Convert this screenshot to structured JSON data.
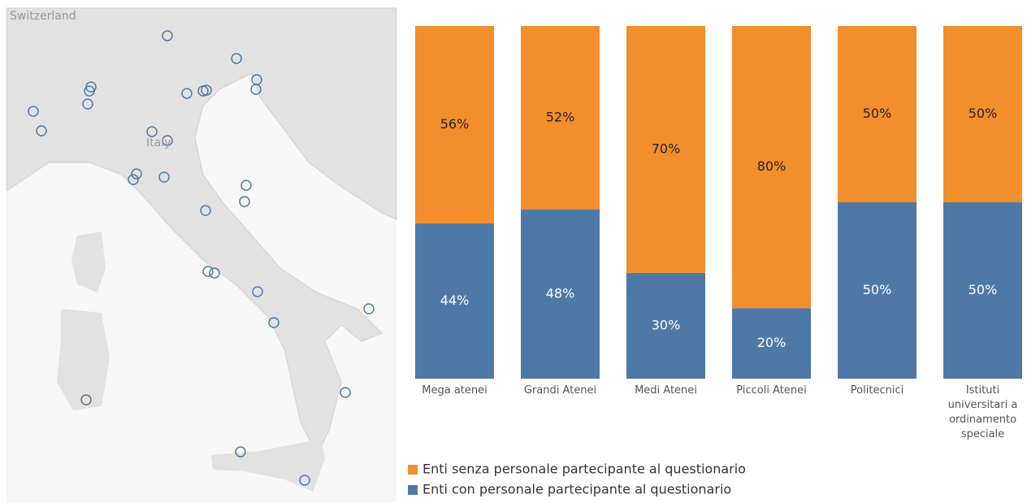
{
  "map": {
    "labels": [
      "Switzerland",
      "Italy"
    ]
  },
  "chart_data": {
    "type": "bar",
    "stacked": true,
    "categories": [
      "Mega atenei",
      "Grandi Atenei",
      "Medi Atenei",
      "Piccoli Atenei",
      "Politecnici",
      "Istituti universitari a ordinamento speciale"
    ],
    "series": [
      {
        "name": "Enti con personale partecipante al questionario",
        "color": "#4e79a7",
        "values": [
          44,
          48,
          30,
          20,
          50,
          50
        ],
        "value_labels": [
          "44%",
          "48%",
          "30%",
          "20%",
          "50%",
          "50%"
        ]
      },
      {
        "name": "Enti senza personale partecipante al questionario",
        "color": "#f28e2b",
        "values": [
          56,
          52,
          70,
          80,
          50,
          50
        ],
        "value_labels": [
          "56%",
          "52%",
          "70%",
          "80%",
          "50%",
          "50%"
        ]
      }
    ],
    "ylim": [
      0,
      100
    ]
  }
}
